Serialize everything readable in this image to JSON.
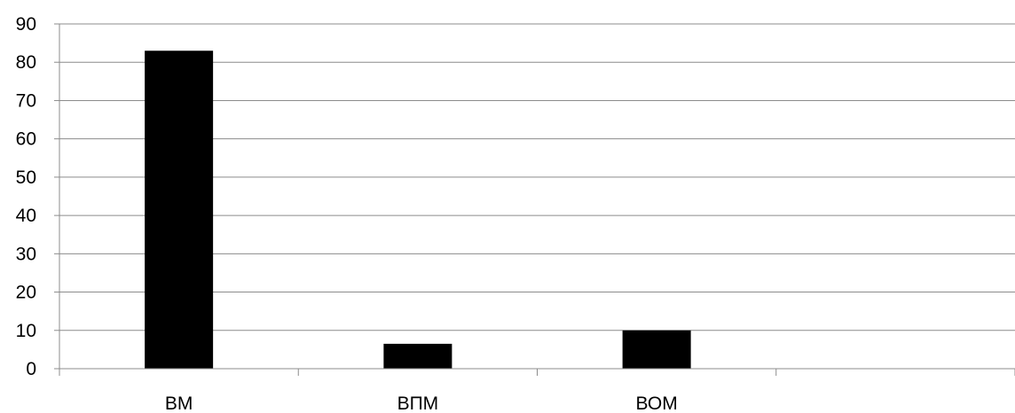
{
  "chart_data": {
    "type": "bar",
    "categories": [
      "ВМ",
      "ВПМ",
      "ВОМ",
      ""
    ],
    "values": [
      83,
      6.5,
      10,
      null
    ],
    "title": "",
    "xlabel": "",
    "ylabel": "",
    "ylim": [
      0,
      90
    ],
    "yticks": [
      0,
      10,
      20,
      30,
      40,
      50,
      60,
      70,
      80,
      90
    ],
    "grid": true,
    "legend": "none",
    "colors": {
      "bar": "#000000",
      "grid": "#8c8c8c",
      "axis": "#8c8c8c",
      "text": "#000000"
    }
  }
}
